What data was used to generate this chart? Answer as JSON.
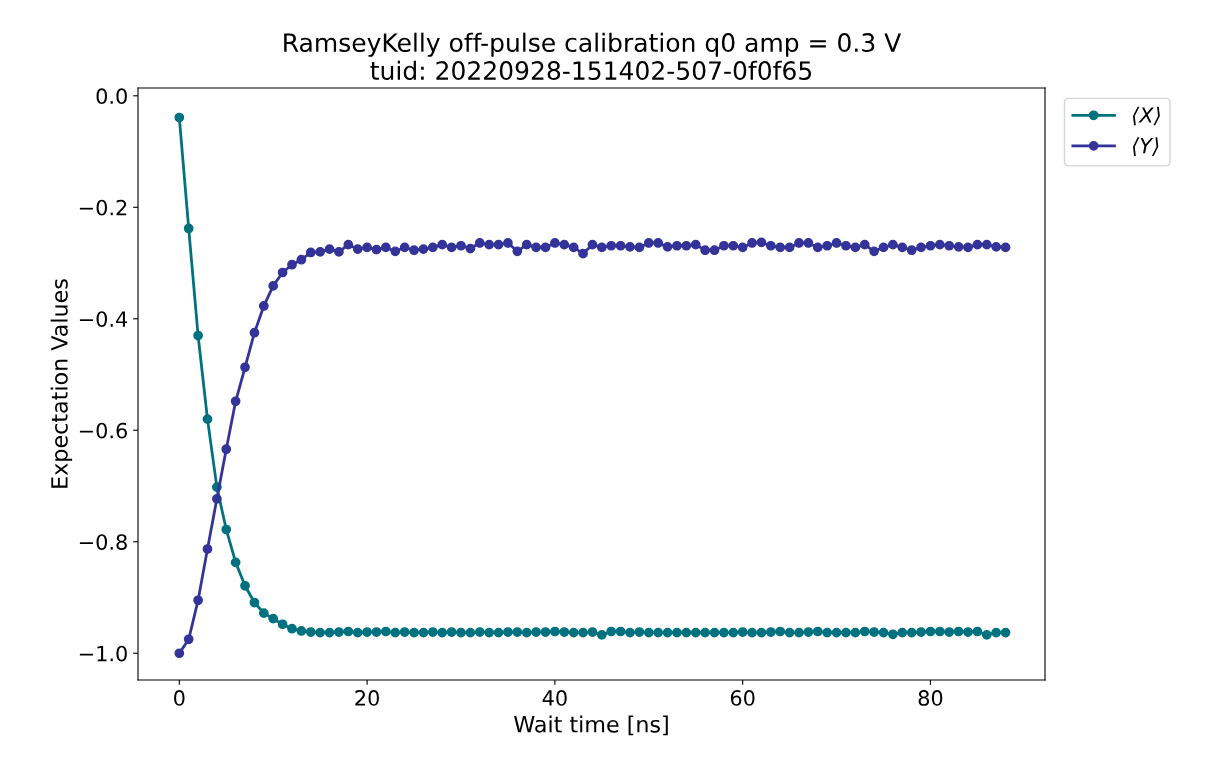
{
  "chart_data": {
    "type": "line",
    "title": "RamseyKelly off-pulse calibration q0 amp = 0.3 V\ntuid: 20220928-151402-507-0f0f65",
    "xlabel": "Wait time [ns]",
    "ylabel": "Expectation Values",
    "x": [
      0,
      1,
      2,
      3,
      4,
      5,
      6,
      7,
      8,
      9,
      10,
      11,
      12,
      13,
      14,
      15,
      16,
      17,
      18,
      19,
      20,
      21,
      22,
      23,
      24,
      25,
      26,
      27,
      28,
      29,
      30,
      31,
      32,
      33,
      34,
      35,
      36,
      37,
      38,
      39,
      40,
      41,
      42,
      43,
      44,
      45,
      46,
      47,
      48,
      49,
      50,
      51,
      52,
      53,
      54,
      55,
      56,
      57,
      58,
      59,
      60,
      61,
      62,
      63,
      64,
      65,
      66,
      67,
      68,
      69,
      70,
      71,
      72,
      73,
      74,
      75,
      76,
      77,
      78,
      79,
      80,
      81,
      82,
      83,
      84,
      85,
      86,
      87,
      88
    ],
    "series": [
      {
        "name": "⟨X⟩",
        "color": "#00717f",
        "values": [
          -0.039,
          -0.238,
          -0.43,
          -0.58,
          -0.702,
          -0.778,
          -0.837,
          -0.879,
          -0.909,
          -0.928,
          -0.938,
          -0.948,
          -0.956,
          -0.96,
          -0.962,
          -0.963,
          -0.963,
          -0.962,
          -0.961,
          -0.963,
          -0.962,
          -0.962,
          -0.961,
          -0.963,
          -0.962,
          -0.963,
          -0.963,
          -0.962,
          -0.963,
          -0.962,
          -0.963,
          -0.963,
          -0.962,
          -0.963,
          -0.963,
          -0.962,
          -0.962,
          -0.963,
          -0.962,
          -0.962,
          -0.961,
          -0.962,
          -0.963,
          -0.963,
          -0.962,
          -0.967,
          -0.961,
          -0.961,
          -0.963,
          -0.962,
          -0.963,
          -0.963,
          -0.963,
          -0.963,
          -0.963,
          -0.963,
          -0.963,
          -0.963,
          -0.963,
          -0.963,
          -0.962,
          -0.963,
          -0.963,
          -0.962,
          -0.961,
          -0.963,
          -0.963,
          -0.962,
          -0.961,
          -0.963,
          -0.963,
          -0.963,
          -0.963,
          -0.961,
          -0.962,
          -0.963,
          -0.966,
          -0.963,
          -0.963,
          -0.962,
          -0.961,
          -0.961,
          -0.962,
          -0.961,
          -0.962,
          -0.961,
          -0.967,
          -0.963,
          -0.963
        ]
      },
      {
        "name": "⟨Y⟩",
        "color": "#333399",
        "values": [
          -1.0,
          -0.975,
          -0.905,
          -0.813,
          -0.723,
          -0.634,
          -0.548,
          -0.487,
          -0.425,
          -0.377,
          -0.341,
          -0.317,
          -0.303,
          -0.294,
          -0.281,
          -0.28,
          -0.275,
          -0.28,
          -0.267,
          -0.275,
          -0.272,
          -0.276,
          -0.272,
          -0.279,
          -0.272,
          -0.277,
          -0.275,
          -0.272,
          -0.267,
          -0.272,
          -0.269,
          -0.274,
          -0.264,
          -0.267,
          -0.267,
          -0.264,
          -0.279,
          -0.267,
          -0.272,
          -0.272,
          -0.264,
          -0.267,
          -0.272,
          -0.283,
          -0.267,
          -0.272,
          -0.269,
          -0.269,
          -0.271,
          -0.272,
          -0.264,
          -0.264,
          -0.271,
          -0.269,
          -0.269,
          -0.267,
          -0.277,
          -0.277,
          -0.269,
          -0.269,
          -0.272,
          -0.264,
          -0.263,
          -0.269,
          -0.272,
          -0.272,
          -0.264,
          -0.264,
          -0.272,
          -0.269,
          -0.264,
          -0.269,
          -0.272,
          -0.267,
          -0.279,
          -0.272,
          -0.267,
          -0.272,
          -0.277,
          -0.272,
          -0.269,
          -0.267,
          -0.269,
          -0.271,
          -0.272,
          -0.267,
          -0.267,
          -0.271,
          -0.272
        ]
      }
    ],
    "xlim": [
      -4.4,
      92.2
    ],
    "ylim": [
      -1.048,
      0.014
    ],
    "xticks": [
      0,
      20,
      40,
      60,
      80
    ],
    "yticks": [
      {
        "value": 0,
        "label": "0.0"
      },
      {
        "value": -0.2,
        "label": "−0.2"
      },
      {
        "value": -0.4,
        "label": "−0.4"
      },
      {
        "value": -0.6,
        "label": "−0.6"
      },
      {
        "value": -0.8,
        "label": "−0.8"
      },
      {
        "value": -1.0,
        "label": "−1.0"
      }
    ],
    "marker": "circle",
    "line_style": "solid",
    "legend": "top right",
    "grid": false
  }
}
